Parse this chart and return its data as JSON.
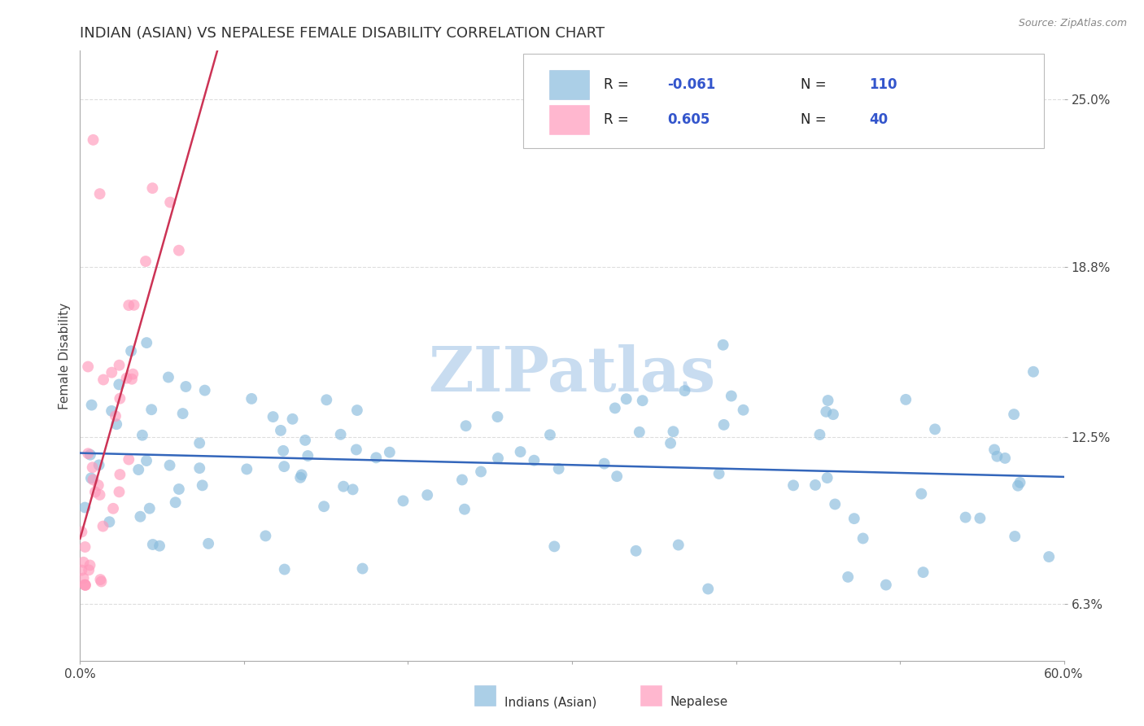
{
  "title": "INDIAN (ASIAN) VS NEPALESE FEMALE DISABILITY CORRELATION CHART",
  "source": "Source: ZipAtlas.com",
  "ylabel": "Female Disability",
  "xlim": [
    0.0,
    0.6
  ],
  "ylim": [
    0.042,
    0.268
  ],
  "xtick_positions": [
    0.0,
    0.1,
    0.2,
    0.3,
    0.4,
    0.5,
    0.6
  ],
  "xticklabels_edge": [
    "0.0%",
    "60.0%"
  ],
  "ytick_positions": [
    0.063,
    0.125,
    0.188,
    0.25
  ],
  "ytick_labels": [
    "6.3%",
    "12.5%",
    "18.8%",
    "25.0%"
  ],
  "blue_color": "#88BBDD",
  "pink_color": "#FF99BB",
  "trend_blue": "#3366BB",
  "trend_pink": "#CC3355",
  "trend_pink_dash": "#FFAACC",
  "watermark": "ZIPatlas",
  "watermark_color": "#C8DCF0",
  "legend_label1": "Indians (Asian)",
  "legend_label2": "Nepalese",
  "r1": "-0.061",
  "n1": "110",
  "r2": "0.605",
  "n2": "40",
  "legend_blue_color": "#88BBDD",
  "legend_pink_color": "#FF99BB",
  "value_color": "#3355CC",
  "label_color": "#444444",
  "grid_color": "#DDDDDD",
  "spine_color": "#AAAAAA",
  "title_color": "#333333",
  "source_color": "#888888"
}
